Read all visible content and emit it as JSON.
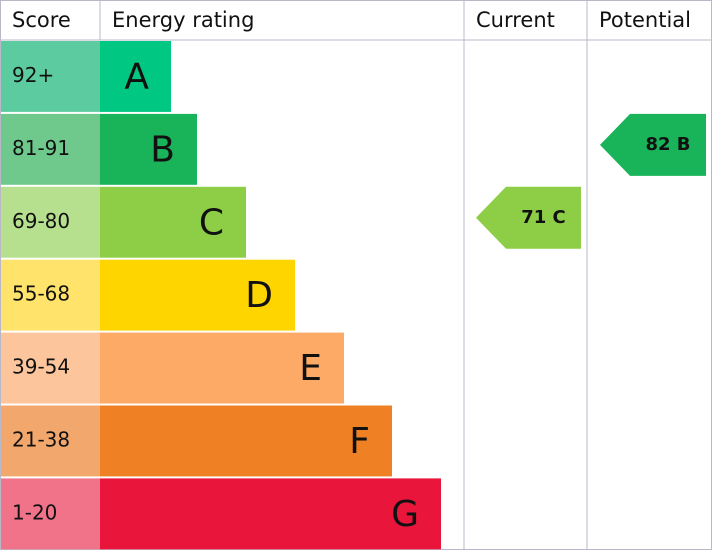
{
  "header": {
    "score": "Score",
    "energy_rating": "Energy rating",
    "current": "Current",
    "potential": "Potential"
  },
  "rows": [
    {
      "score": "92+",
      "letter": "A",
      "color": "#00c781",
      "score_color": "#5ccba0"
    },
    {
      "score": "81-91",
      "letter": "B",
      "color": "#19b459",
      "score_color": "#6fc98d"
    },
    {
      "score": "69-80",
      "letter": "C",
      "color": "#8dce46",
      "score_color": "#b7e08e"
    },
    {
      "score": "55-68",
      "letter": "D",
      "color": "#ffd500",
      "score_color": "#ffe36a"
    },
    {
      "score": "39-54",
      "letter": "E",
      "color": "#fcaa65",
      "score_color": "#fdc59b"
    },
    {
      "score": "21-38",
      "letter": "F",
      "color": "#ef8023",
      "score_color": "#f2a76c"
    },
    {
      "score": "1-20",
      "letter": "G",
      "color": "#e9153b",
      "score_color": "#f0738a"
    }
  ],
  "current": {
    "label": "71 C",
    "color": "#8dce46"
  },
  "potential": {
    "label": "82 B",
    "color": "#19b459"
  }
}
